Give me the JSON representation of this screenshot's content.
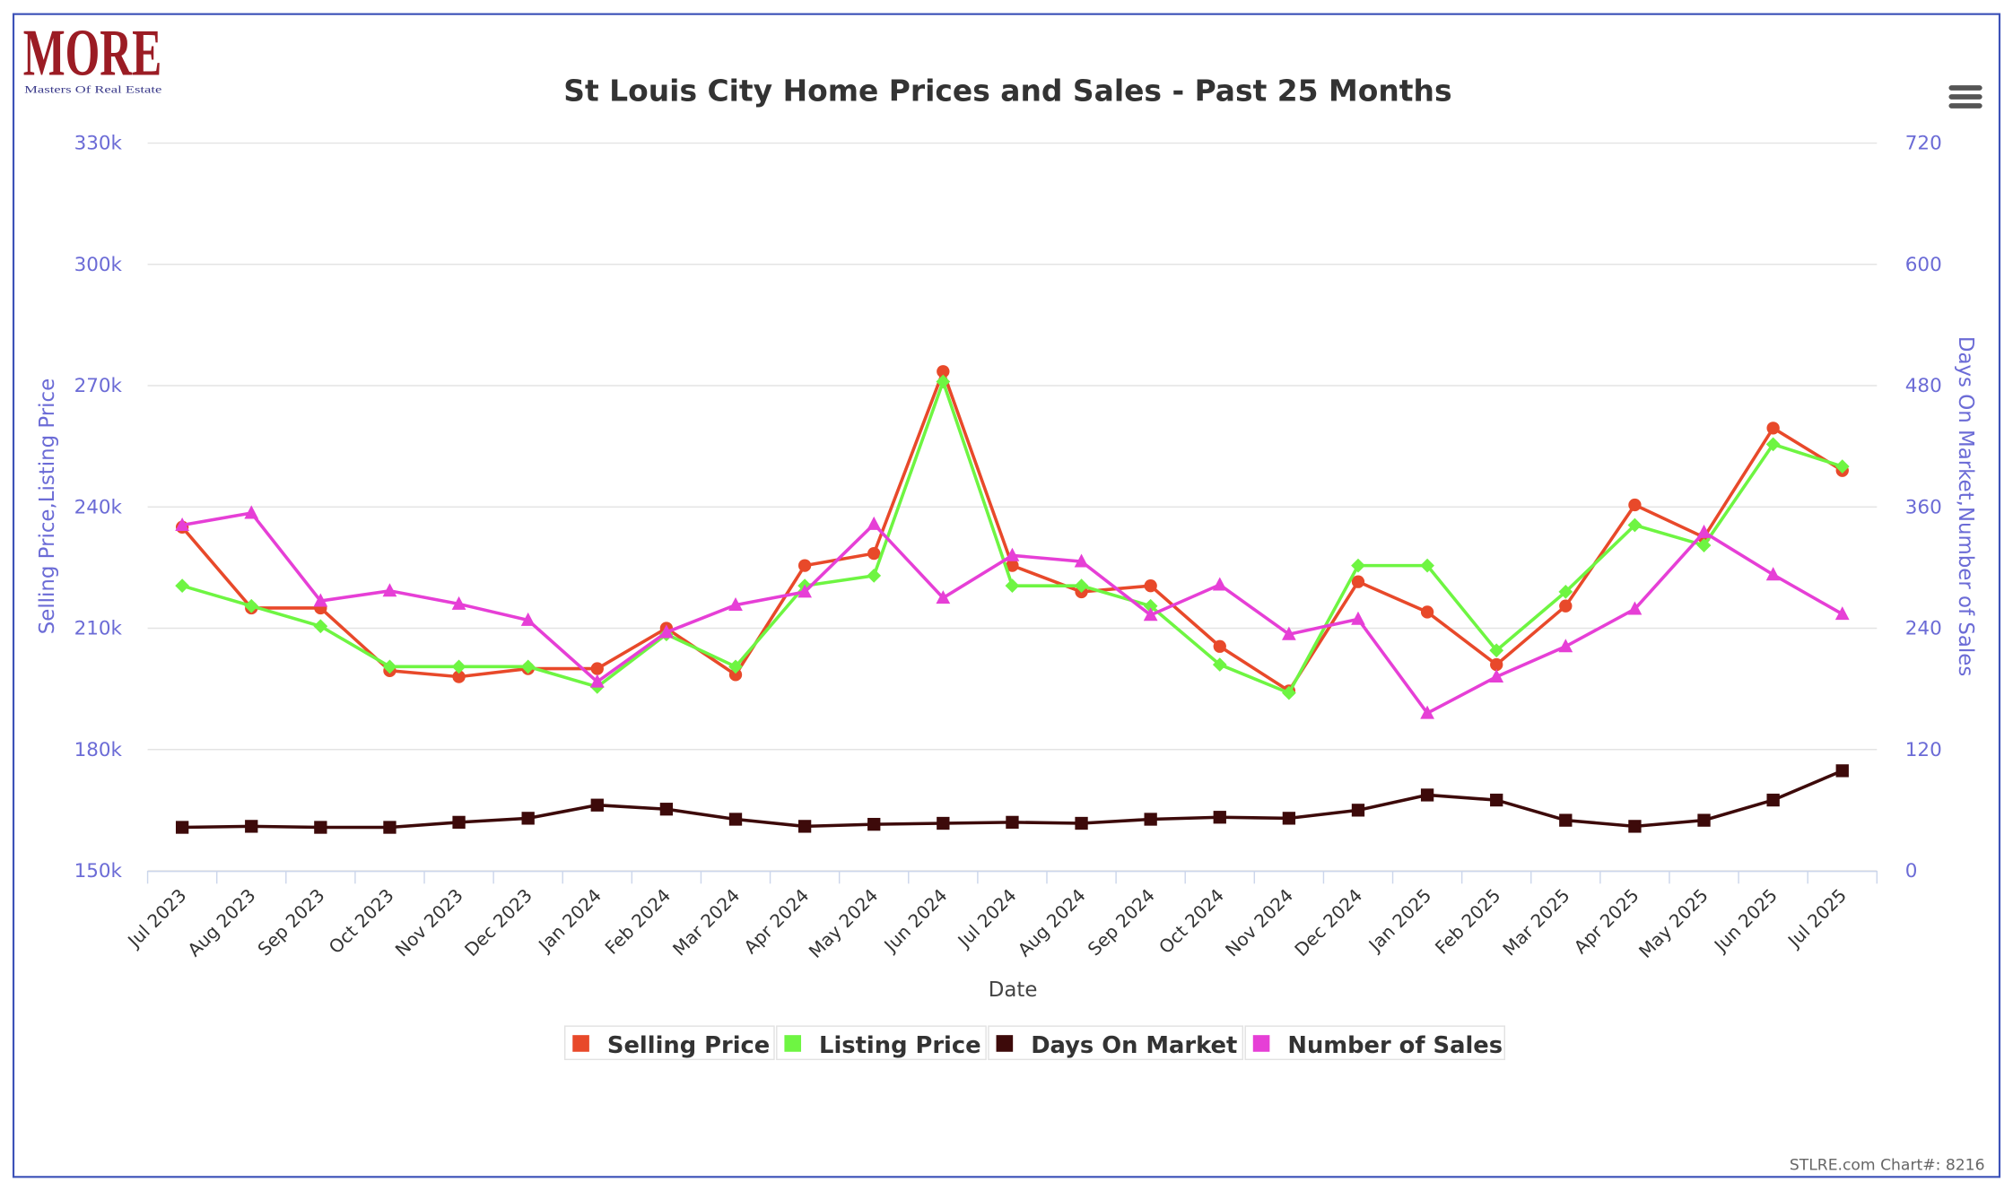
{
  "logo": {
    "title": "MORE",
    "subtitle": "Masters Of Real Estate"
  },
  "credit": "STLRE.com Chart#: 8216",
  "chart_data": {
    "type": "line",
    "title": "St Louis City Home Prices and Sales - Past 25 Months",
    "x_label": "Date",
    "y_label": "Selling Price,Listing Price",
    "y2_label": "Days On Market,Number of Sales",
    "categories": [
      "Jul 2023",
      "Aug 2023",
      "Sep 2023",
      "Oct 2023",
      "Nov 2023",
      "Dec 2023",
      "Jan 2024",
      "Feb 2024",
      "Mar 2024",
      "Apr 2024",
      "May 2024",
      "Jun 2024",
      "Jul 2024",
      "Aug 2024",
      "Sep 2024",
      "Oct 2024",
      "Nov 2024",
      "Dec 2024",
      "Jan 2025",
      "Feb 2025",
      "Mar 2025",
      "Apr 2025",
      "May 2025",
      "Jun 2025",
      "Jul 2025"
    ],
    "ylim": [
      150000,
      330000
    ],
    "yticks": [
      {
        "value": 150000,
        "label": "150k"
      },
      {
        "value": 180000,
        "label": "180k"
      },
      {
        "value": 210000,
        "label": "210k"
      },
      {
        "value": 240000,
        "label": "240k"
      },
      {
        "value": 270000,
        "label": "270k"
      },
      {
        "value": 300000,
        "label": "300k"
      },
      {
        "value": 330000,
        "label": "330k"
      }
    ],
    "y2lim": [
      0,
      720
    ],
    "y2ticks": [
      0,
      120,
      240,
      360,
      480,
      600,
      720
    ],
    "grid": true,
    "legend": "bottom",
    "series": [
      {
        "name": "Selling Price",
        "color": "#e8492a",
        "symbol": "circle",
        "values": [
          235000,
          215000,
          215000,
          199500,
          198000,
          200000,
          200000,
          210000,
          198500,
          225500,
          228500,
          273500,
          225500,
          219000,
          220500,
          205500,
          194500,
          221500,
          214000,
          201000,
          215500,
          240500,
          232500,
          259500,
          249000
        ]
      },
      {
        "name": "Listing Price",
        "color": "#6ef542",
        "symbol": "diamond",
        "values": [
          220500,
          215500,
          210500,
          200500,
          200500,
          200500,
          195500,
          208500,
          200500,
          220500,
          223000,
          271000,
          220500,
          220500,
          215500,
          201000,
          194000,
          225500,
          225500,
          204500,
          219000,
          235500,
          230500,
          255500,
          250000
        ]
      },
      {
        "name": "Days On Market",
        "color": "#3d0a0a",
        "symbol": "square",
        "axis": "y2",
        "values": [
          43,
          44,
          43,
          43,
          48,
          52,
          65,
          61,
          51,
          44,
          46,
          47,
          48,
          47,
          51,
          53,
          52,
          60,
          75,
          70,
          50,
          44,
          50,
          70,
          99
        ]
      },
      {
        "name": "Number of Sales",
        "color": "#e63fd6",
        "symbol": "triangle",
        "axis": "y2",
        "values": [
          342,
          354,
          267,
          277,
          264,
          248,
          187,
          236,
          263,
          276,
          343,
          270,
          312,
          306,
          253,
          283,
          234,
          249,
          156,
          192,
          222,
          259,
          335,
          293,
          254
        ]
      }
    ]
  }
}
